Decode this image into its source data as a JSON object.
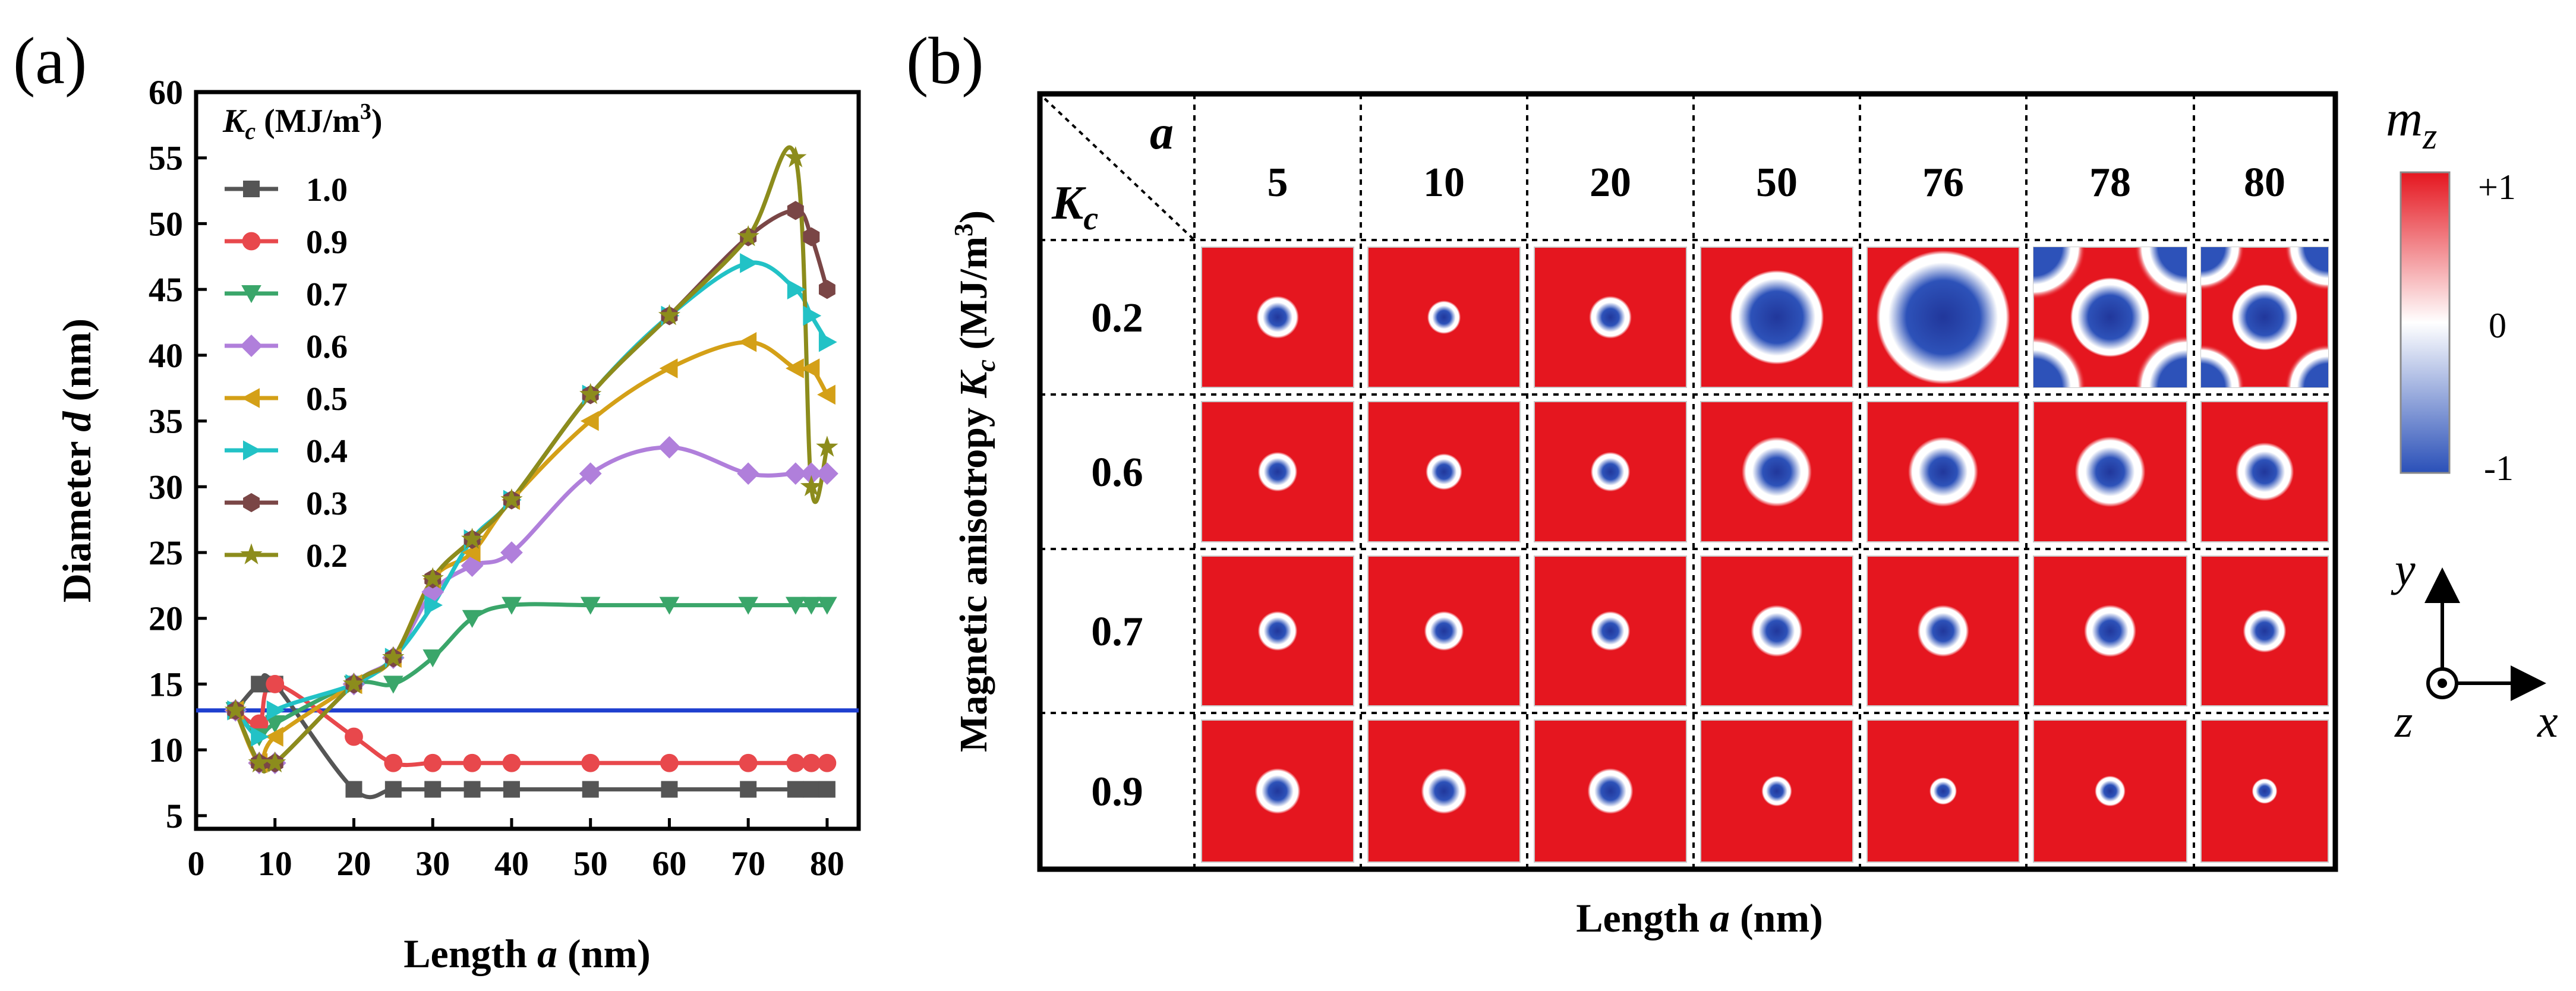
{
  "panel_a": {
    "label": "(a)",
    "legend_title": {
      "symbol": "K",
      "subscript": "c",
      "units_pre": " (MJ/m",
      "units_sup": "3",
      "units_post": ")"
    },
    "xlabel_pre": "Length ",
    "xlabel_var": "a",
    "xlabel_post": " (nm)",
    "ylabel_pre": "Diameter ",
    "ylabel_var": "d",
    "ylabel_post": "  (nm)"
  },
  "chart_data": {
    "type": "line",
    "title": "",
    "xlabel": "Length a (nm)",
    "ylabel": "Diameter d (nm)",
    "xlim": [
      0,
      84
    ],
    "ylim": [
      4,
      60
    ],
    "xticks": [
      0,
      10,
      20,
      30,
      40,
      50,
      60,
      70,
      80
    ],
    "yticks": [
      5,
      10,
      15,
      20,
      25,
      30,
      35,
      40,
      45,
      50,
      55,
      60
    ],
    "reference_line": {
      "y": 13,
      "color": "#1f3fcf"
    },
    "legend_position": "top-left",
    "series": [
      {
        "name": "1.0",
        "color": "#555555",
        "marker": "square",
        "x": [
          5,
          8,
          10,
          20,
          25,
          30,
          35,
          40,
          50,
          60,
          70,
          76,
          78,
          80
        ],
        "y": [
          13,
          15,
          15,
          7,
          7,
          7,
          7,
          7,
          7,
          7,
          7,
          7,
          7,
          7
        ]
      },
      {
        "name": "0.9",
        "color": "#e8484c",
        "marker": "circle",
        "x": [
          5,
          8,
          10,
          20,
          25,
          30,
          35,
          40,
          50,
          60,
          70,
          76,
          78,
          80
        ],
        "y": [
          13,
          12,
          15,
          11,
          9,
          9,
          9,
          9,
          9,
          9,
          9,
          9,
          9,
          9
        ]
      },
      {
        "name": "0.7",
        "color": "#3aa66a",
        "marker": "triangle-down",
        "x": [
          5,
          8,
          10,
          20,
          25,
          30,
          35,
          40,
          50,
          60,
          70,
          76,
          78,
          80
        ],
        "y": [
          13,
          11,
          12,
          15,
          15,
          17,
          20,
          21,
          21,
          21,
          21,
          21,
          21,
          21
        ]
      },
      {
        "name": "0.6",
        "color": "#b07fdb",
        "marker": "diamond",
        "x": [
          5,
          8,
          10,
          20,
          25,
          30,
          35,
          40,
          50,
          60,
          70,
          76,
          78,
          80
        ],
        "y": [
          13,
          9,
          9,
          15,
          17,
          22,
          24,
          25,
          31,
          33,
          31,
          31,
          31,
          31
        ]
      },
      {
        "name": "0.5",
        "color": "#d4a017",
        "marker": "triangle-left",
        "x": [
          5,
          8,
          10,
          20,
          25,
          30,
          35,
          40,
          50,
          60,
          70,
          76,
          78,
          80
        ],
        "y": [
          13,
          9,
          11,
          15,
          17,
          23,
          25,
          29,
          35,
          39,
          41,
          39,
          39,
          37
        ]
      },
      {
        "name": "0.4",
        "color": "#22c2c6",
        "marker": "triangle-right",
        "x": [
          5,
          8,
          10,
          20,
          25,
          30,
          35,
          40,
          50,
          60,
          70,
          76,
          78,
          80
        ],
        "y": [
          13,
          11,
          13,
          15,
          17,
          21,
          26,
          29,
          37,
          43,
          47,
          45,
          43,
          41
        ]
      },
      {
        "name": "0.3",
        "color": "#7a4646",
        "marker": "hexagon",
        "x": [
          5,
          8,
          10,
          20,
          25,
          30,
          35,
          40,
          50,
          60,
          70,
          76,
          78,
          80
        ],
        "y": [
          13,
          9,
          9,
          15,
          17,
          23,
          26,
          29,
          37,
          43,
          49,
          51,
          49,
          45
        ]
      },
      {
        "name": "0.2",
        "color": "#8c8c1c",
        "marker": "star",
        "x": [
          5,
          8,
          10,
          20,
          25,
          30,
          35,
          40,
          50,
          60,
          70,
          76,
          78,
          80
        ],
        "y": [
          13,
          9,
          9,
          15,
          17,
          23,
          26,
          29,
          37,
          43,
          49,
          55,
          30,
          33
        ]
      }
    ]
  },
  "panel_b": {
    "label": "(b)",
    "corner_a": "a",
    "corner_k_symbol": "K",
    "corner_k_subscript": "c",
    "columns": [
      "5",
      "10",
      "20",
      "50",
      "76",
      "78",
      "80"
    ],
    "rows": [
      {
        "label": "0.2",
        "types": [
          "s0.28",
          "s0.22",
          "s0.28",
          "b0.62",
          "b0.88",
          "p",
          "p"
        ]
      },
      {
        "label": "0.6",
        "types": [
          "s0.26",
          "s0.24",
          "s0.26",
          "s0.46",
          "s0.46",
          "s0.46",
          "s0.46"
        ]
      },
      {
        "label": "0.7",
        "types": [
          "s0.26",
          "s0.26",
          "s0.26",
          "s0.34",
          "s0.34",
          "s0.34",
          "s0.34"
        ]
      },
      {
        "label": "0.9",
        "types": [
          "s0.3",
          "s0.3",
          "s0.3",
          "s0.2",
          "s0.18",
          "s0.2",
          "s0.2"
        ]
      }
    ],
    "xlabel_pre": "Length ",
    "xlabel_var": "a",
    "xlabel_post": " (nm)",
    "ylabel_pre": "Magnetic anisotropy ",
    "ylabel_var": "K",
    "ylabel_sub": "c",
    "ylabel_units_pre": " (MJ/m",
    "ylabel_units_sup": "3",
    "ylabel_units_post": ")",
    "colorbar": {
      "title_symbol": "m",
      "title_sub": "z",
      "max_label": "+1",
      "mid_label": "0",
      "min_label": "-1",
      "colors": {
        "max": "#e5161f",
        "mid": "#ffffff",
        "min": "#2a50b8"
      }
    },
    "axes": {
      "x": "x",
      "y": "y",
      "z": "z"
    }
  }
}
